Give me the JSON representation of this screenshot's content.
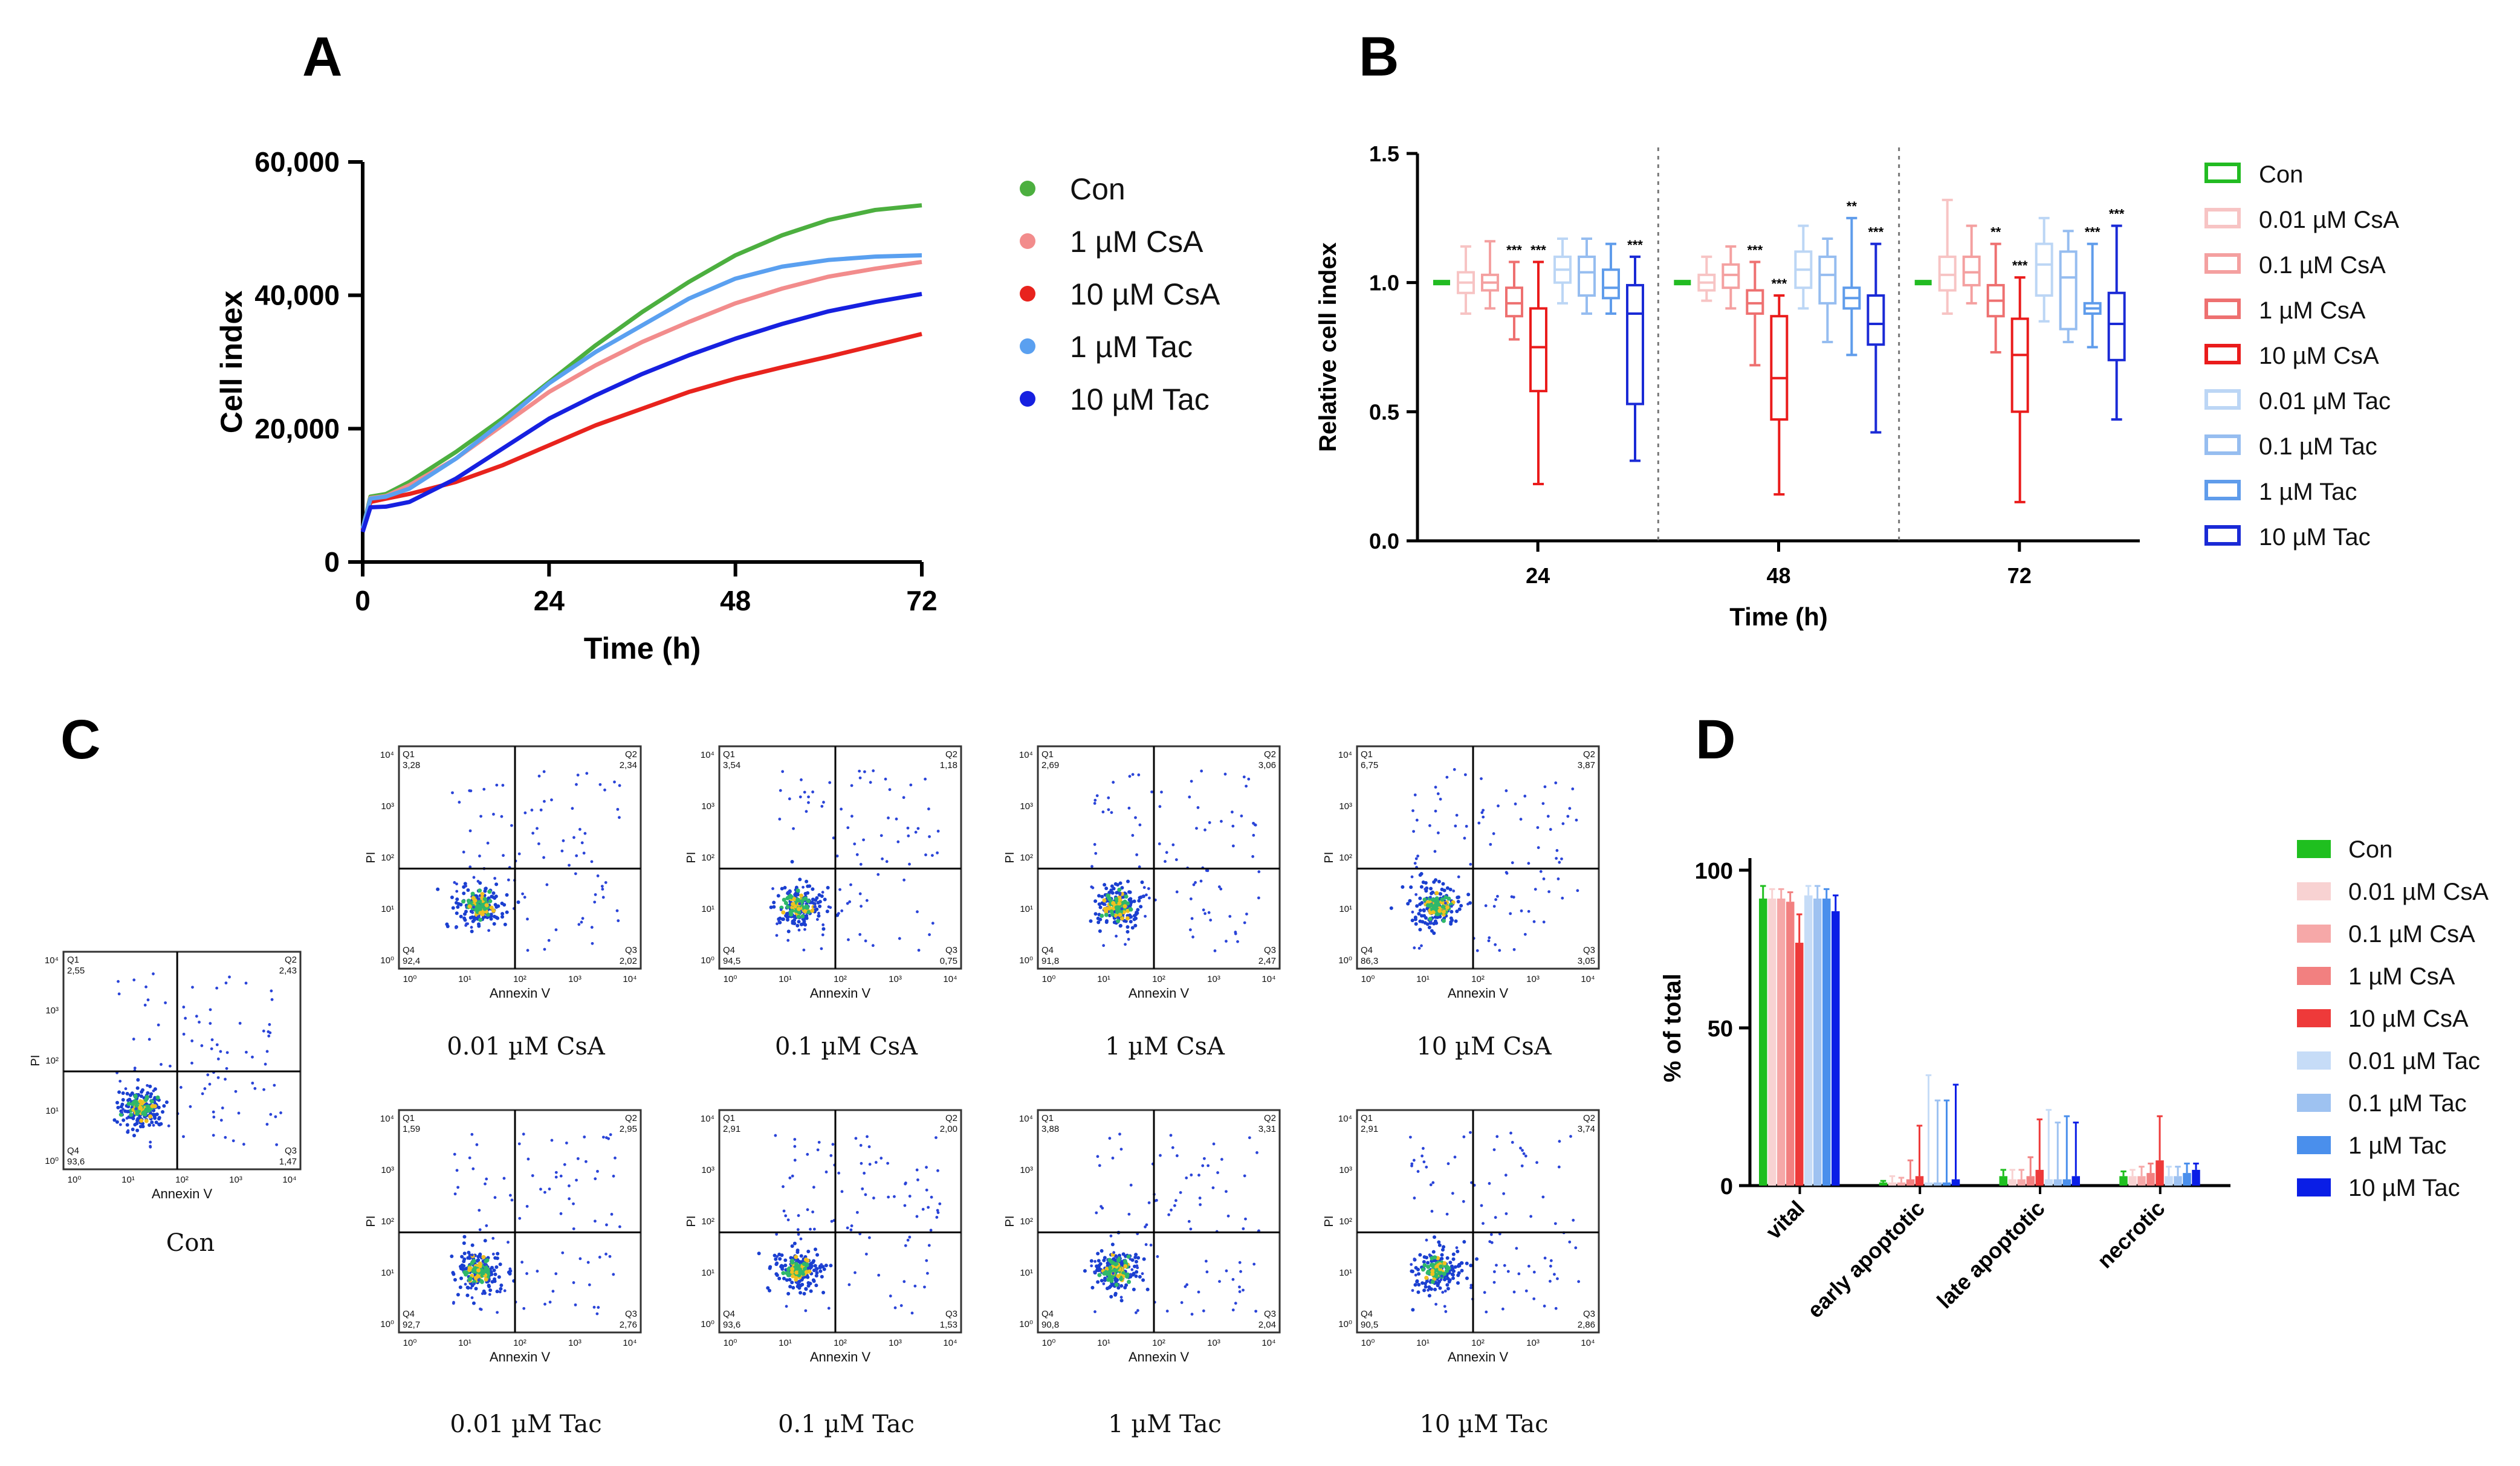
{
  "chart_data": [
    {
      "panel": "A",
      "type": "line",
      "xlabel": "Time (h)",
      "ylabel": "Cell index",
      "xlim": [
        0,
        72
      ],
      "ylim": [
        0,
        60000
      ],
      "xticks": [
        "0",
        "24",
        "48",
        "72"
      ],
      "yticks": [
        "0",
        "20,000",
        "40,000",
        "60,000"
      ],
      "x": [
        0,
        1,
        3,
        6,
        12,
        18,
        24,
        30,
        36,
        42,
        48,
        54,
        60,
        66,
        72
      ],
      "series": [
        {
          "name": "Con",
          "color": "#4caf3f",
          "values": [
            5000,
            9800,
            10200,
            12000,
            16500,
            21500,
            27000,
            32500,
            37500,
            42000,
            46000,
            49000,
            51300,
            52800,
            53500
          ]
        },
        {
          "name": "1 µM CsA",
          "color": "#f28c8c",
          "values": [
            5000,
            9600,
            9900,
            11500,
            15500,
            20500,
            25500,
            29500,
            33000,
            36000,
            38800,
            41000,
            42800,
            44000,
            45000
          ]
        },
        {
          "name": "10 µM CsA",
          "color": "#e8231d",
          "values": [
            4800,
            9000,
            9500,
            10200,
            12000,
            14500,
            17500,
            20500,
            23000,
            25500,
            27500,
            29200,
            30800,
            32500,
            34200
          ]
        },
        {
          "name": "1 µM Tac",
          "color": "#5aa0f0",
          "values": [
            5000,
            9500,
            9800,
            11000,
            15500,
            21000,
            26800,
            31500,
            35500,
            39500,
            42500,
            44300,
            45300,
            45800,
            46000
          ]
        },
        {
          "name": "10 µM Tac",
          "color": "#1620e0",
          "values": [
            4500,
            8200,
            8300,
            9000,
            12500,
            17000,
            21500,
            25000,
            28200,
            31000,
            33500,
            35700,
            37600,
            39000,
            40200
          ]
        }
      ]
    },
    {
      "panel": "B",
      "type": "box",
      "xlabel": "Time (h)",
      "ylabel": "Relative cell index",
      "ylim": [
        0,
        1.5
      ],
      "yticks": [
        "0.0",
        "0.5",
        "1.0",
        "1.5"
      ],
      "categories": [
        "24",
        "48",
        "72"
      ],
      "series_names": [
        "Con",
        "0.01 µM CsA",
        "0.1 µM CsA",
        "1 µM CsA",
        "10 µM CsA",
        "0.01 µM Tac",
        "0.1 µM Tac",
        "1 µM Tac",
        "10 µM Tac"
      ],
      "series_colors": [
        "#22bb22",
        "#f7c4c4",
        "#f4a0a0",
        "#ee7070",
        "#ea1b1b",
        "#bcd6f5",
        "#96bdf0",
        "#5f9ceb",
        "#1a2ad6"
      ],
      "groups": [
        {
          "time": "24",
          "boxes": [
            {
              "min": 1.0,
              "q1": 1.0,
              "median": 1.0,
              "q3": 1.0,
              "max": 1.0,
              "sig": ""
            },
            {
              "min": 0.88,
              "q1": 0.96,
              "median": 1.0,
              "q3": 1.04,
              "max": 1.14,
              "sig": ""
            },
            {
              "min": 0.9,
              "q1": 0.97,
              "median": 1.0,
              "q3": 1.03,
              "max": 1.16,
              "sig": ""
            },
            {
              "min": 0.78,
              "q1": 0.87,
              "median": 0.92,
              "q3": 0.98,
              "max": 1.08,
              "sig": "***"
            },
            {
              "min": 0.22,
              "q1": 0.58,
              "median": 0.75,
              "q3": 0.9,
              "max": 1.08,
              "sig": "***"
            },
            {
              "min": 0.92,
              "q1": 1.0,
              "median": 1.05,
              "q3": 1.1,
              "max": 1.17,
              "sig": ""
            },
            {
              "min": 0.88,
              "q1": 0.95,
              "median": 1.04,
              "q3": 1.1,
              "max": 1.17,
              "sig": ""
            },
            {
              "min": 0.88,
              "q1": 0.94,
              "median": 0.98,
              "q3": 1.05,
              "max": 1.15,
              "sig": ""
            },
            {
              "min": 0.31,
              "q1": 0.53,
              "median": 0.88,
              "q3": 0.99,
              "max": 1.1,
              "sig": "***"
            }
          ]
        },
        {
          "time": "48",
          "boxes": [
            {
              "min": 1.0,
              "q1": 1.0,
              "median": 1.0,
              "q3": 1.0,
              "max": 1.0,
              "sig": ""
            },
            {
              "min": 0.93,
              "q1": 0.97,
              "median": 1.0,
              "q3": 1.03,
              "max": 1.1,
              "sig": ""
            },
            {
              "min": 0.9,
              "q1": 0.98,
              "median": 1.03,
              "q3": 1.07,
              "max": 1.14,
              "sig": ""
            },
            {
              "min": 0.68,
              "q1": 0.88,
              "median": 0.92,
              "q3": 0.97,
              "max": 1.08,
              "sig": "***"
            },
            {
              "min": 0.18,
              "q1": 0.47,
              "median": 0.63,
              "q3": 0.87,
              "max": 0.95,
              "sig": "***"
            },
            {
              "min": 0.9,
              "q1": 0.98,
              "median": 1.05,
              "q3": 1.12,
              "max": 1.22,
              "sig": ""
            },
            {
              "min": 0.77,
              "q1": 0.92,
              "median": 1.03,
              "q3": 1.1,
              "max": 1.17,
              "sig": ""
            },
            {
              "min": 0.72,
              "q1": 0.9,
              "median": 0.94,
              "q3": 0.98,
              "max": 1.25,
              "sig": "**"
            },
            {
              "min": 0.42,
              "q1": 0.76,
              "median": 0.84,
              "q3": 0.95,
              "max": 1.15,
              "sig": "***"
            }
          ]
        },
        {
          "time": "72",
          "boxes": [
            {
              "min": 1.0,
              "q1": 1.0,
              "median": 1.0,
              "q3": 1.0,
              "max": 1.0,
              "sig": ""
            },
            {
              "min": 0.88,
              "q1": 0.97,
              "median": 1.03,
              "q3": 1.1,
              "max": 1.32,
              "sig": ""
            },
            {
              "min": 0.92,
              "q1": 0.99,
              "median": 1.04,
              "q3": 1.1,
              "max": 1.22,
              "sig": ""
            },
            {
              "min": 0.73,
              "q1": 0.87,
              "median": 0.93,
              "q3": 0.99,
              "max": 1.15,
              "sig": "**"
            },
            {
              "min": 0.15,
              "q1": 0.5,
              "median": 0.72,
              "q3": 0.86,
              "max": 1.02,
              "sig": "***"
            },
            {
              "min": 0.85,
              "q1": 0.95,
              "median": 1.07,
              "q3": 1.15,
              "max": 1.25,
              "sig": ""
            },
            {
              "min": 0.77,
              "q1": 0.82,
              "median": 1.02,
              "q3": 1.12,
              "max": 1.2,
              "sig": ""
            },
            {
              "min": 0.75,
              "q1": 0.88,
              "median": 0.9,
              "q3": 0.92,
              "max": 1.15,
              "sig": "***"
            },
            {
              "min": 0.47,
              "q1": 0.7,
              "median": 0.84,
              "q3": 0.96,
              "max": 1.22,
              "sig": "***"
            }
          ]
        }
      ]
    },
    {
      "panel": "C",
      "type": "scatter",
      "xlabel": "Annexin V",
      "ylabel": "PI",
      "axis_scale": "log",
      "xticks": [
        "10⁰",
        "10¹",
        "10²",
        "10³",
        "10⁴"
      ],
      "yticks": [
        "10⁰",
        "10¹",
        "10²",
        "10³",
        "10⁴"
      ],
      "quadrant_labels": [
        "Q1",
        "Q2",
        "Q3",
        "Q4"
      ],
      "plots": [
        {
          "caption": "Con",
          "Q1": "2,55",
          "Q2": "2,43",
          "Q3": "1,47",
          "Q4": "93,6"
        },
        {
          "caption": "0.01 µM CsA",
          "Q1": "3,28",
          "Q2": "2,34",
          "Q3": "2,02",
          "Q4": "92,4"
        },
        {
          "caption": "0.1 µM CsA",
          "Q1": "3,54",
          "Q2": "1,18",
          "Q3": "0,75",
          "Q4": "94,5"
        },
        {
          "caption": "1 µM CsA",
          "Q1": "2,69",
          "Q2": "3,06",
          "Q3": "2,47",
          "Q4": "91,8"
        },
        {
          "caption": "10 µM CsA",
          "Q1": "6,75",
          "Q2": "3,87",
          "Q3": "3,05",
          "Q4": "86,3"
        },
        {
          "caption": "0.01 µM Tac",
          "Q1": "1,59",
          "Q2": "2,95",
          "Q3": "2,76",
          "Q4": "92,7"
        },
        {
          "caption": "0.1 µM Tac",
          "Q1": "2,91",
          "Q2": "2,00",
          "Q3": "1,53",
          "Q4": "93,6"
        },
        {
          "caption": "1 µM Tac",
          "Q1": "3,88",
          "Q2": "3,31",
          "Q3": "2,04",
          "Q4": "90,8"
        },
        {
          "caption": "10 µM Tac",
          "Q1": "2,91",
          "Q2": "3,74",
          "Q3": "2,86",
          "Q4": "90,5"
        }
      ]
    },
    {
      "panel": "D",
      "type": "bar",
      "ylabel": "% of total",
      "ylim": [
        0,
        100
      ],
      "yticks": [
        "0",
        "50",
        "100"
      ],
      "categories": [
        "vital",
        "early apoptotic",
        "late apoptotic",
        "necrotic"
      ],
      "series": [
        {
          "name": "Con",
          "color": "#1fbf1f",
          "values": [
            91,
            1,
            3,
            3
          ],
          "errors": [
            4,
            0.5,
            2,
            1.5
          ]
        },
        {
          "name": "0.01 µM CsA",
          "color": "#f8d2d2",
          "values": [
            91,
            1,
            2,
            3
          ],
          "errors": [
            3,
            2,
            3,
            2
          ]
        },
        {
          "name": "0.1 µM CsA",
          "color": "#f6a8a8",
          "values": [
            91,
            1,
            2,
            3
          ],
          "errors": [
            3,
            1.5,
            3,
            3
          ]
        },
        {
          "name": "1 µM CsA",
          "color": "#f28080",
          "values": [
            90,
            2,
            3,
            4
          ],
          "errors": [
            3,
            6,
            6,
            3
          ]
        },
        {
          "name": "10 µM CsA",
          "color": "#ee3a3a",
          "values": [
            77,
            3,
            5,
            8
          ],
          "errors": [
            9,
            16,
            16,
            14
          ]
        },
        {
          "name": "0.01 µM Tac",
          "color": "#c6dcf7",
          "values": [
            92,
            1,
            2,
            3
          ],
          "errors": [
            3,
            34,
            22,
            3
          ]
        },
        {
          "name": "0.1 µM Tac",
          "color": "#9ec2f1",
          "values": [
            91,
            1,
            2,
            3
          ],
          "errors": [
            4,
            26,
            18,
            3
          ]
        },
        {
          "name": "1 µM Tac",
          "color": "#4a8fec",
          "values": [
            91,
            1,
            2,
            4
          ],
          "errors": [
            3,
            26,
            20,
            3
          ]
        },
        {
          "name": "10 µM Tac",
          "color": "#0a1ee6",
          "values": [
            87,
            2,
            3,
            5
          ],
          "errors": [
            5,
            30,
            17,
            2
          ]
        }
      ]
    }
  ],
  "labels": {
    "A": "A",
    "B": "B",
    "C": "C",
    "D": "D"
  }
}
